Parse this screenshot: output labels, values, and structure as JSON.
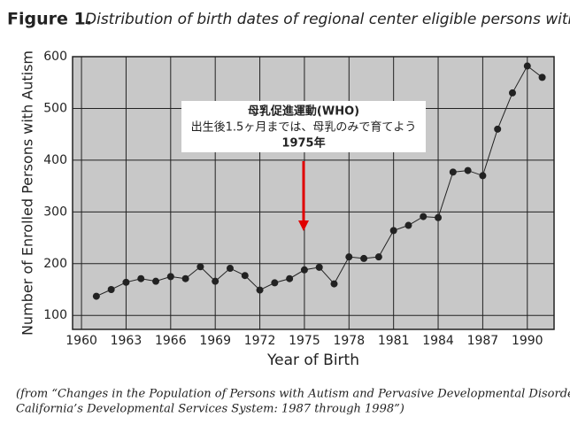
{
  "chart_data": {
    "type": "line",
    "title_label": "Figure 1.",
    "title": "Distribution of birth dates of regional center eligible persons with autism",
    "x_label": "Year of Birth",
    "y_label": "Number of Enrolled Persons with Autism",
    "annotation": [
      "母乳促進運動(WHO)",
      "出生後1.5ヶ月までは、母乳のみで育てよう",
      "1975年"
    ],
    "caption": [
      "(from “Changes in the Population of Persons with Autism and Pervasive Developmental Disorders in",
      "California’s Developmental Services System: 1987 through 1998”)"
    ],
    "x": [
      1961,
      1962,
      1963,
      1964,
      1965,
      1966,
      1967,
      1968,
      1969,
      1970,
      1971,
      1972,
      1973,
      1974,
      1975,
      1976,
      1977,
      1978,
      1979,
      1980,
      1981,
      1982,
      1983,
      1984,
      1985,
      1986,
      1987,
      1988,
      1989,
      1990,
      1991
    ],
    "series": [
      {
        "color": "#222222",
        "values": [
          137,
          150,
          164,
          171,
          166,
          175,
          171,
          194,
          166,
          191,
          177,
          149,
          163,
          171,
          188,
          193,
          161,
          213,
          210,
          213,
          264,
          274,
          291,
          289,
          377,
          380,
          370,
          460,
          530,
          582,
          560
        ]
      }
    ],
    "xlim": [
      1959.4,
      1991.8
    ],
    "xticks": [
      1960,
      1963,
      1966,
      1969,
      1972,
      1975,
      1978,
      1981,
      1984,
      1987,
      1990
    ],
    "ylim": [
      73,
      600
    ],
    "yticks": [
      100,
      200,
      300,
      400,
      500,
      600
    ],
    "grid": true
  }
}
